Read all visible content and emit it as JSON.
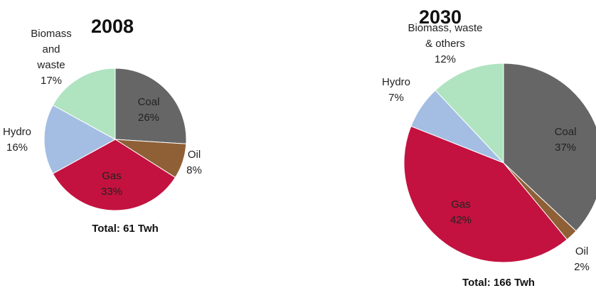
{
  "chart_data": [
    {
      "type": "pie",
      "title": "2008",
      "total": "Total:  61 Twh",
      "slices": [
        {
          "name": "Coal",
          "label_lines": [
            "Coal",
            "26%"
          ],
          "value": 26,
          "color": "#666666"
        },
        {
          "name": "Oil",
          "label_lines": [
            "Oil",
            "8%"
          ],
          "value": 8,
          "color": "#8f5f36"
        },
        {
          "name": "Gas",
          "label_lines": [
            "Gas",
            "33%"
          ],
          "value": 33,
          "color": "#c3123f"
        },
        {
          "name": "Hydro",
          "label_lines": [
            "Hydro",
            "16%"
          ],
          "value": 16,
          "color": "#a4bee3"
        },
        {
          "name": "Biomass and waste",
          "label_lines": [
            "Biomass",
            "and",
            "waste",
            "17%"
          ],
          "value": 17,
          "color": "#b0e3c0"
        }
      ]
    },
    {
      "type": "pie",
      "title": "2030",
      "total": "Total:  166 Twh",
      "slices": [
        {
          "name": "Coal",
          "label_lines": [
            "Coal",
            "37%"
          ],
          "value": 37,
          "color": "#666666"
        },
        {
          "name": "Oil",
          "label_lines": [
            "Oil",
            "2%"
          ],
          "value": 2,
          "color": "#8f5f36"
        },
        {
          "name": "Gas",
          "label_lines": [
            "Gas",
            "42%"
          ],
          "value": 42,
          "color": "#c3123f"
        },
        {
          "name": "Hydro",
          "label_lines": [
            "Hydro",
            "7%"
          ],
          "value": 7,
          "color": "#a4bee3"
        },
        {
          "name": "Biomass, waste & others",
          "label_lines": [
            "Biomass, waste",
            "& others",
            "12%"
          ],
          "value": 12,
          "color": "#b0e3c0"
        }
      ]
    }
  ]
}
